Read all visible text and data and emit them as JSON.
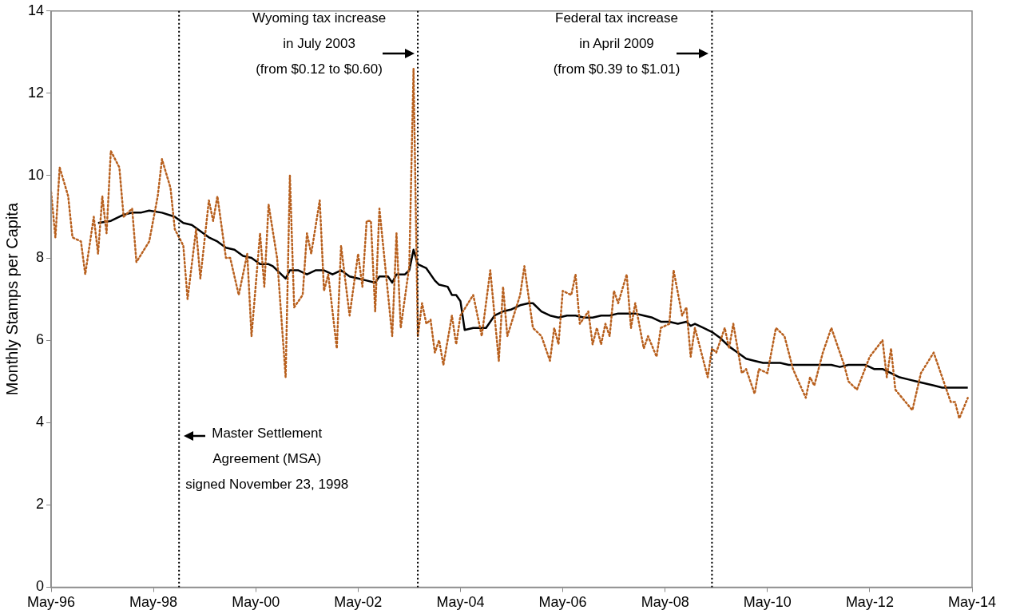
{
  "chart_data": {
    "type": "line",
    "ylabel": "Monthly Stamps per Capita",
    "xlim": [
      "1996-05",
      "2014-05"
    ],
    "xticks": [
      {
        "value": "1996-05",
        "label": "May-96"
      },
      {
        "value": "1998-05",
        "label": "May-98"
      },
      {
        "value": "2000-05",
        "label": "May-00"
      },
      {
        "value": "2002-05",
        "label": "May-02"
      },
      {
        "value": "2004-05",
        "label": "May-04"
      },
      {
        "value": "2006-05",
        "label": "May-06"
      },
      {
        "value": "2008-05",
        "label": "May-08"
      },
      {
        "value": "2010-05",
        "label": "May-10"
      },
      {
        "value": "2012-05",
        "label": "May-12"
      },
      {
        "value": "2014-05",
        "label": "May-14"
      }
    ],
    "ylim": [
      0,
      14
    ],
    "yticks": [
      0,
      2,
      4,
      6,
      8,
      10,
      12,
      14
    ],
    "grid": false,
    "legend": false,
    "marker": "none",
    "series": [
      {
        "color": "#b8601e",
        "line_style": "dotted",
        "x": [
          "1996-05",
          "1996-06",
          "1996-07",
          "1996-09",
          "1996-10",
          "1996-12",
          "1997-01",
          "1997-03",
          "1997-04",
          "1997-05",
          "1997-06",
          "1997-07",
          "1997-09",
          "1997-10",
          "1997-12",
          "1998-01",
          "1998-04",
          "1998-06",
          "1998-07",
          "1998-09",
          "1998-10",
          "1998-12",
          "1999-01",
          "1999-03",
          "1999-04",
          "1999-06",
          "1999-07",
          "1999-08",
          "1999-10",
          "1999-11",
          "2000-01",
          "2000-03",
          "2000-04",
          "2000-06",
          "2000-07",
          "2000-08",
          "2000-10",
          "2000-12",
          "2001-01",
          "2001-02",
          "2001-04",
          "2001-05",
          "2001-06",
          "2001-08",
          "2001-09",
          "2001-10",
          "2001-12",
          "2002-01",
          "2002-03",
          "2002-05",
          "2002-06",
          "2002-07",
          "2002-08",
          "2002-09",
          "2002-10",
          "2003-01",
          "2003-02",
          "2003-03",
          "2003-05",
          "2003-06",
          "2003-07",
          "2003-08",
          "2003-09",
          "2003-10",
          "2003-11",
          "2003-12",
          "2004-01",
          "2004-03",
          "2004-04",
          "2004-05",
          "2004-08",
          "2004-10",
          "2004-12",
          "2005-02",
          "2005-03",
          "2005-04",
          "2005-07",
          "2005-08",
          "2005-10",
          "2005-12",
          "2006-02",
          "2006-03",
          "2006-04",
          "2006-05",
          "2006-07",
          "2006-08",
          "2006-09",
          "2006-11",
          "2006-12",
          "2007-01",
          "2007-02",
          "2007-03",
          "2007-04",
          "2007-05",
          "2007-06",
          "2007-08",
          "2007-09",
          "2007-10",
          "2007-12",
          "2008-01",
          "2008-03",
          "2008-04",
          "2008-06",
          "2008-07",
          "2008-09",
          "2008-10",
          "2008-11",
          "2008-12",
          "2009-03",
          "2009-04",
          "2009-05",
          "2009-07",
          "2009-08",
          "2009-09",
          "2009-11",
          "2009-12",
          "2010-02",
          "2010-03",
          "2010-05",
          "2010-07",
          "2010-09",
          "2010-11",
          "2011-02",
          "2011-03",
          "2011-04",
          "2011-06",
          "2011-08",
          "2011-11",
          "2011-12",
          "2012-02",
          "2012-05",
          "2012-08",
          "2012-09",
          "2012-10",
          "2012-11",
          "2013-03",
          "2013-05",
          "2013-08",
          "2013-10",
          "2013-12",
          "2014-01",
          "2014-02",
          "2014-04"
        ],
        "values": [
          9.6,
          8.5,
          10.2,
          9.5,
          8.5,
          8.4,
          7.6,
          9.0,
          8.1,
          9.5,
          8.6,
          10.6,
          10.2,
          9.0,
          9.2,
          7.9,
          8.4,
          9.5,
          10.4,
          9.7,
          8.7,
          8.3,
          7.0,
          8.7,
          7.5,
          9.4,
          8.9,
          9.5,
          8.0,
          8.0,
          7.1,
          8.1,
          6.1,
          8.6,
          7.3,
          9.3,
          8.0,
          5.1,
          10.0,
          6.8,
          7.1,
          8.6,
          8.1,
          9.4,
          7.2,
          7.6,
          5.8,
          8.3,
          6.6,
          8.1,
          7.3,
          8.9,
          8.9,
          6.7,
          9.2,
          6.1,
          8.6,
          6.3,
          7.8,
          12.6,
          6.1,
          6.9,
          6.4,
          6.5,
          5.7,
          6.0,
          5.4,
          6.6,
          5.9,
          6.6,
          7.1,
          6.1,
          7.7,
          5.5,
          7.3,
          6.1,
          7.1,
          7.8,
          6.3,
          6.1,
          5.5,
          6.3,
          5.9,
          7.2,
          7.1,
          7.6,
          6.4,
          6.7,
          5.9,
          6.3,
          5.9,
          6.4,
          6.1,
          7.2,
          6.9,
          7.6,
          6.3,
          6.9,
          5.8,
          6.1,
          5.6,
          6.3,
          6.4,
          7.7,
          6.6,
          6.8,
          5.6,
          6.3,
          5.1,
          5.8,
          5.7,
          6.3,
          5.8,
          6.4,
          5.2,
          5.3,
          4.7,
          5.3,
          5.2,
          6.3,
          6.1,
          5.3,
          4.6,
          5.1,
          4.9,
          5.7,
          6.3,
          5.4,
          5.0,
          4.8,
          5.6,
          6.0,
          5.1,
          5.8,
          4.8,
          4.3,
          5.2,
          5.7,
          5.1,
          4.5,
          4.5,
          4.1,
          4.6
        ]
      },
      {
        "color": "#000000",
        "line_style": "solid",
        "x": [
          "1997-04",
          "1997-07",
          "1997-10",
          "1997-12",
          "1998-02",
          "1998-04",
          "1998-07",
          "1998-10",
          "1998-12",
          "1999-02",
          "1999-04",
          "1999-06",
          "1999-08",
          "1999-10",
          "1999-12",
          "2000-02",
          "2000-04",
          "2000-06",
          "2000-08",
          "2000-09",
          "2000-12",
          "2001-01",
          "2001-03",
          "2001-05",
          "2001-07",
          "2001-09",
          "2001-11",
          "2002-01",
          "2002-03",
          "2002-05",
          "2002-07",
          "2002-09",
          "2002-10",
          "2002-12",
          "2003-01",
          "2003-02",
          "2003-04",
          "2003-05",
          "2003-06",
          "2003-07",
          "2003-09",
          "2003-11",
          "2003-12",
          "2004-02",
          "2004-03",
          "2004-04",
          "2004-05",
          "2004-06",
          "2004-08",
          "2004-10",
          "2004-11",
          "2005-01",
          "2005-03",
          "2005-05",
          "2005-07",
          "2005-09",
          "2005-10",
          "2005-12",
          "2006-02",
          "2006-04",
          "2006-06",
          "2006-08",
          "2006-10",
          "2006-12",
          "2007-02",
          "2007-04",
          "2007-06",
          "2007-08",
          "2007-10",
          "2007-12",
          "2008-02",
          "2008-04",
          "2008-06",
          "2008-08",
          "2008-10",
          "2008-11",
          "2008-12",
          "2009-02",
          "2009-04",
          "2009-06",
          "2009-08",
          "2009-10",
          "2009-12",
          "2010-02",
          "2010-04",
          "2010-06",
          "2010-08",
          "2010-10",
          "2010-12",
          "2011-02",
          "2011-04",
          "2011-06",
          "2011-08",
          "2011-10",
          "2011-12",
          "2012-02",
          "2012-04",
          "2012-06",
          "2012-08",
          "2012-10",
          "2012-12",
          "2013-02",
          "2013-04",
          "2013-06",
          "2013-08",
          "2013-10",
          "2013-12",
          "2014-02",
          "2014-04"
        ],
        "values": [
          8.85,
          8.9,
          9.05,
          9.1,
          9.1,
          9.15,
          9.1,
          9.0,
          8.85,
          8.8,
          8.65,
          8.5,
          8.4,
          8.25,
          8.2,
          8.05,
          8.0,
          7.85,
          7.85,
          7.8,
          7.5,
          7.7,
          7.7,
          7.6,
          7.7,
          7.7,
          7.6,
          7.7,
          7.55,
          7.5,
          7.45,
          7.4,
          7.55,
          7.55,
          7.4,
          7.6,
          7.6,
          7.7,
          8.2,
          7.85,
          7.75,
          7.45,
          7.35,
          7.3,
          7.1,
          7.1,
          6.95,
          6.25,
          6.3,
          6.3,
          6.3,
          6.6,
          6.7,
          6.75,
          6.85,
          6.9,
          6.9,
          6.7,
          6.6,
          6.55,
          6.6,
          6.6,
          6.55,
          6.55,
          6.6,
          6.6,
          6.65,
          6.65,
          6.65,
          6.6,
          6.55,
          6.45,
          6.45,
          6.4,
          6.45,
          6.35,
          6.4,
          6.3,
          6.2,
          6.05,
          5.85,
          5.7,
          5.55,
          5.5,
          5.45,
          5.45,
          5.45,
          5.4,
          5.4,
          5.4,
          5.4,
          5.4,
          5.4,
          5.35,
          5.4,
          5.4,
          5.4,
          5.3,
          5.3,
          5.2,
          5.1,
          5.05,
          5.0,
          4.95,
          4.9,
          4.85,
          4.85,
          4.85,
          4.85
        ]
      }
    ],
    "ref_lines": [
      {
        "axis": "x",
        "value": "1998-11",
        "label": "Master Settlement\nAgreement (MSA)\nsigned November 23, 1998",
        "color": "#000000",
        "line_style": "dotted"
      },
      {
        "axis": "x",
        "value": "2003-07",
        "label": "Wyoming tax increase\nin July 2003\n(from $0.12 to $0.60)",
        "color": "#000000",
        "line_style": "dotted"
      },
      {
        "axis": "x",
        "value": "2009-04",
        "label": "Federal tax increase\nin April 2009\n(from $0.39 to $1.01)",
        "color": "#000000",
        "line_style": "dotted"
      }
    ]
  }
}
